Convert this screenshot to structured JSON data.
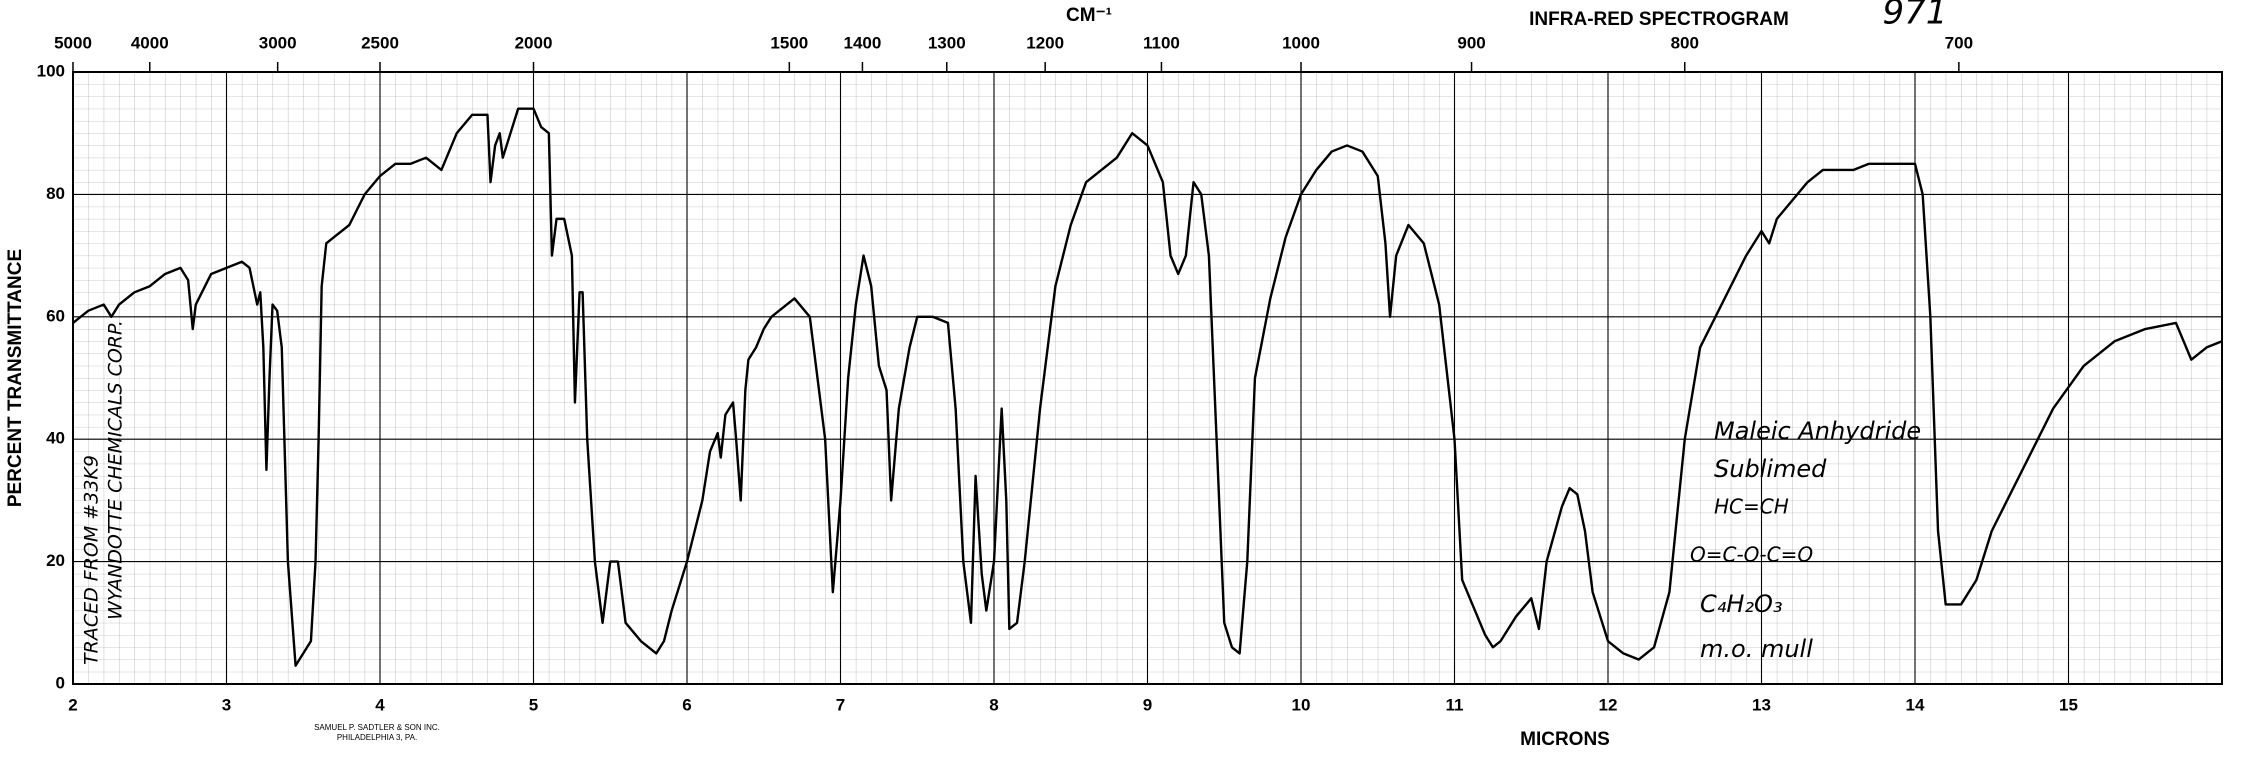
{
  "chart_data": {
    "type": "line",
    "title": "INFRA-RED SPECTROGRAM",
    "x2_label": "CM⁻¹",
    "xlabel": "MICRONS",
    "ylabel": "PERCENT TRANSMITTANCE",
    "sheet_number": "971",
    "publisher": [
      "SAMUEL P. SADTLER & SON INC.",
      "PHILADELPHIA 3, PA."
    ],
    "side_note": [
      "TRACED FROM #33K9",
      "WYANDOTTE CHEMICALS CORP."
    ],
    "annotations": [
      "Maleic Anhydride",
      "Sublimed",
      "HC=CH",
      "O=C-O-C=O",
      "C₄H₂O₃",
      "m.o. mull"
    ],
    "color": "#000000",
    "grid": true,
    "xlim": [
      2,
      16
    ],
    "ylim": [
      0,
      100
    ],
    "xticks": [
      2,
      3,
      4,
      5,
      6,
      7,
      8,
      9,
      10,
      11,
      12,
      13,
      14,
      15
    ],
    "yticks": [
      0,
      20,
      40,
      60,
      80,
      100
    ],
    "x2ticks": [
      5000,
      4000,
      3000,
      2500,
      2000,
      1500,
      1400,
      1300,
      1200,
      1100,
      1000,
      900,
      800,
      700
    ],
    "x": [
      2.0,
      2.1,
      2.2,
      2.25,
      2.3,
      2.4,
      2.5,
      2.6,
      2.7,
      2.75,
      2.78,
      2.8,
      2.9,
      3.0,
      3.1,
      3.15,
      3.2,
      3.22,
      3.24,
      3.26,
      3.28,
      3.3,
      3.33,
      3.36,
      3.4,
      3.45,
      3.5,
      3.55,
      3.58,
      3.6,
      3.62,
      3.65,
      3.7,
      3.8,
      3.9,
      4.0,
      4.1,
      4.2,
      4.3,
      4.4,
      4.5,
      4.6,
      4.7,
      4.72,
      4.75,
      4.78,
      4.8,
      4.85,
      4.9,
      5.0,
      5.05,
      5.1,
      5.12,
      5.15,
      5.2,
      5.25,
      5.27,
      5.3,
      5.32,
      5.35,
      5.4,
      5.45,
      5.5,
      5.55,
      5.6,
      5.7,
      5.8,
      5.85,
      5.9,
      6.0,
      6.1,
      6.15,
      6.2,
      6.22,
      6.25,
      6.3,
      6.32,
      6.35,
      6.38,
      6.4,
      6.45,
      6.5,
      6.55,
      6.6,
      6.7,
      6.8,
      6.85,
      6.9,
      6.95,
      7.0,
      7.05,
      7.1,
      7.15,
      7.2,
      7.25,
      7.3,
      7.33,
      7.38,
      7.45,
      7.5,
      7.6,
      7.7,
      7.75,
      7.8,
      7.85,
      7.88,
      7.92,
      7.95,
      8.0,
      8.05,
      8.08,
      8.1,
      8.15,
      8.2,
      8.3,
      8.4,
      8.5,
      8.6,
      8.7,
      8.8,
      8.9,
      9.0,
      9.1,
      9.15,
      9.2,
      9.25,
      9.3,
      9.35,
      9.4,
      9.45,
      9.5,
      9.55,
      9.6,
      9.65,
      9.7,
      9.8,
      9.9,
      10.0,
      10.1,
      10.2,
      10.3,
      10.4,
      10.5,
      10.55,
      10.58,
      10.62,
      10.7,
      10.8,
      10.9,
      11.0,
      11.05,
      11.1,
      11.2,
      11.25,
      11.3,
      11.4,
      11.5,
      11.55,
      11.6,
      11.7,
      11.75,
      11.8,
      11.85,
      11.9,
      12.0,
      12.1,
      12.2,
      12.3,
      12.4,
      12.5,
      12.6,
      12.7,
      12.8,
      12.9,
      13.0,
      13.05,
      13.1,
      13.2,
      13.3,
      13.4,
      13.5,
      13.6,
      13.7,
      13.8,
      13.9,
      14.0,
      14.05,
      14.1,
      14.15,
      14.2,
      14.3,
      14.4,
      14.5,
      14.7,
      14.9,
      15.1,
      15.3,
      15.5,
      15.7,
      15.8,
      15.9,
      16.0
    ],
    "values": [
      59,
      61,
      62,
      60,
      62,
      64,
      65,
      67,
      68,
      66,
      58,
      62,
      67,
      68,
      69,
      68,
      62,
      64,
      55,
      35,
      50,
      62,
      61,
      55,
      20,
      3,
      5,
      7,
      20,
      40,
      65,
      72,
      73,
      75,
      80,
      83,
      85,
      85,
      86,
      84,
      90,
      93,
      93,
      82,
      88,
      90,
      86,
      90,
      94,
      94,
      91,
      90,
      70,
      76,
      76,
      70,
      46,
      64,
      64,
      40,
      20,
      10,
      20,
      20,
      10,
      7,
      5,
      7,
      12,
      20,
      30,
      38,
      41,
      37,
      44,
      46,
      40,
      30,
      48,
      53,
      55,
      58,
      60,
      61,
      63,
      60,
      50,
      40,
      15,
      30,
      50,
      62,
      70,
      65,
      52,
      48,
      30,
      45,
      55,
      60,
      60,
      59,
      45,
      20,
      10,
      34,
      18,
      12,
      20,
      45,
      30,
      9,
      10,
      20,
      45,
      65,
      75,
      82,
      84,
      86,
      90,
      88,
      82,
      70,
      67,
      70,
      82,
      80,
      70,
      40,
      10,
      6,
      5,
      20,
      50,
      63,
      73,
      80,
      84,
      87,
      88,
      87,
      83,
      72,
      60,
      70,
      75,
      72,
      62,
      40,
      17,
      14,
      8,
      6,
      7,
      11,
      14,
      9,
      20,
      29,
      32,
      31,
      25,
      15,
      7,
      5,
      4,
      6,
      15,
      40,
      55,
      60,
      65,
      70,
      74,
      72,
      76,
      79,
      82,
      84,
      84,
      84,
      85,
      85,
      85,
      85,
      80,
      60,
      25,
      13,
      13,
      17,
      25,
      35,
      45,
      52,
      56,
      58,
      59,
      53,
      55,
      56
    ]
  }
}
